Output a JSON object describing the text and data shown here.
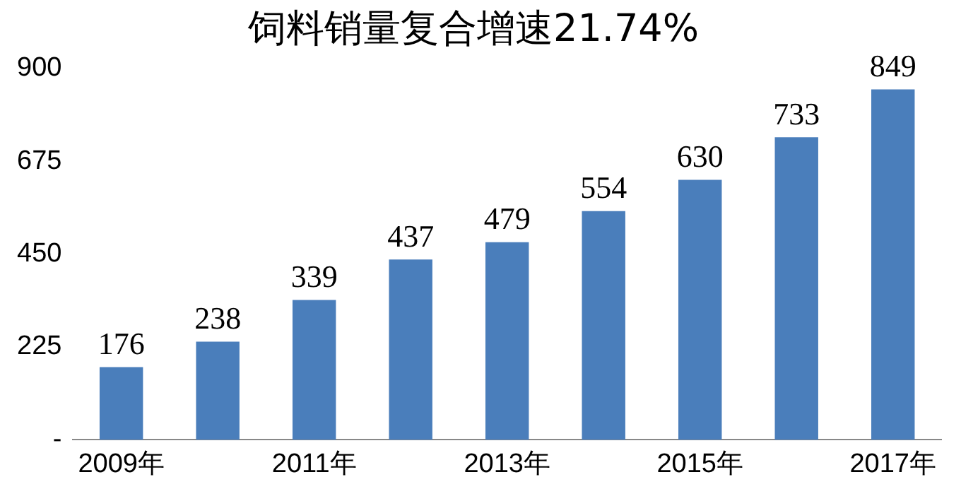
{
  "chart_data": {
    "type": "bar",
    "title": "饲料销量复合增速21.74%",
    "categories": [
      "2009年",
      null,
      "2011年",
      null,
      "2013年",
      null,
      "2015年",
      null,
      "2017年"
    ],
    "values": [
      176,
      238,
      339,
      437,
      479,
      554,
      630,
      733,
      849
    ],
    "color": "#4a7ebb",
    "ylim": [
      0,
      900
    ],
    "yticks": [
      {
        "value": 0,
        "label": "-"
      },
      225,
      450,
      675,
      900
    ],
    "grid": false,
    "legend": false,
    "data_labels": true
  }
}
